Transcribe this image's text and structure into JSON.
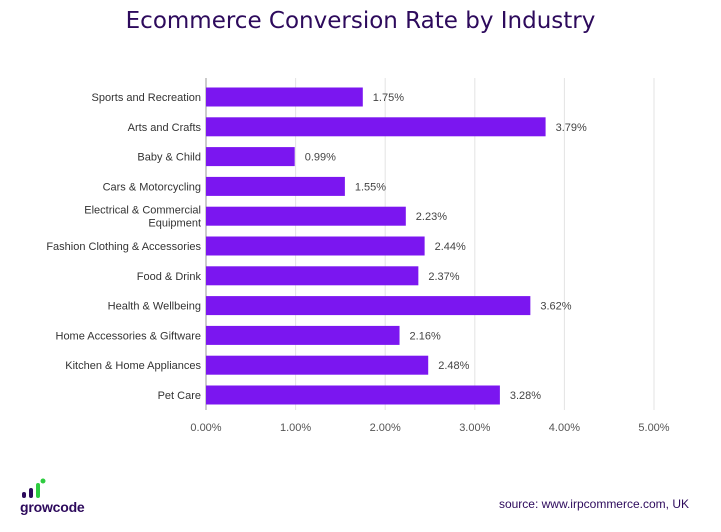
{
  "chart_data": {
    "type": "bar",
    "orientation": "horizontal",
    "title": "Ecommerce Conversion Rate by Industry",
    "categories": [
      "Sports and Recreation",
      "Arts and Crafts",
      "Baby & Child",
      "Cars & Motorcycling",
      "Electrical & Commercial Equipment",
      "Fashion Clothing & Accessories",
      "Food & Drink",
      "Health & Wellbeing",
      "Home Accessories & Giftware",
      "Kitchen & Home Appliances",
      "Pet Care"
    ],
    "category_lines": [
      [
        "Sports and Recreation"
      ],
      [
        "Arts and Crafts"
      ],
      [
        "Baby & Child"
      ],
      [
        "Cars & Motorcycling"
      ],
      [
        "Electrical & Commercial",
        "Equipment"
      ],
      [
        "Fashion Clothing & Accessories"
      ],
      [
        "Food & Drink"
      ],
      [
        "Health & Wellbeing"
      ],
      [
        "Home Accessories & Giftware"
      ],
      [
        "Kitchen & Home Appliances"
      ],
      [
        "Pet Care"
      ]
    ],
    "values": [
      1.75,
      3.79,
      0.99,
      1.55,
      2.23,
      2.44,
      2.37,
      3.62,
      2.16,
      2.48,
      3.28
    ],
    "value_labels": [
      "1.75%",
      "3.79%",
      "0.99%",
      "1.55%",
      "2.23%",
      "2.44%",
      "2.37%",
      "3.62%",
      "2.16%",
      "2.48%",
      "3.28%"
    ],
    "xlim": [
      0,
      5
    ],
    "xticks": [
      0,
      1,
      2,
      3,
      4,
      5
    ],
    "xtick_labels": [
      "0.00%",
      "1.00%",
      "2.00%",
      "3.00%",
      "4.00%",
      "5.00%"
    ],
    "grid": "vertical",
    "bar_color": "#7b16f0",
    "grid_color": "#e3e3e3"
  },
  "branding": {
    "logo_text": "growcode",
    "source": "source: www.irpcommerce.com, UK"
  },
  "colors": {
    "title": "#2d0a5c",
    "logo_green": "#2ecc40"
  }
}
